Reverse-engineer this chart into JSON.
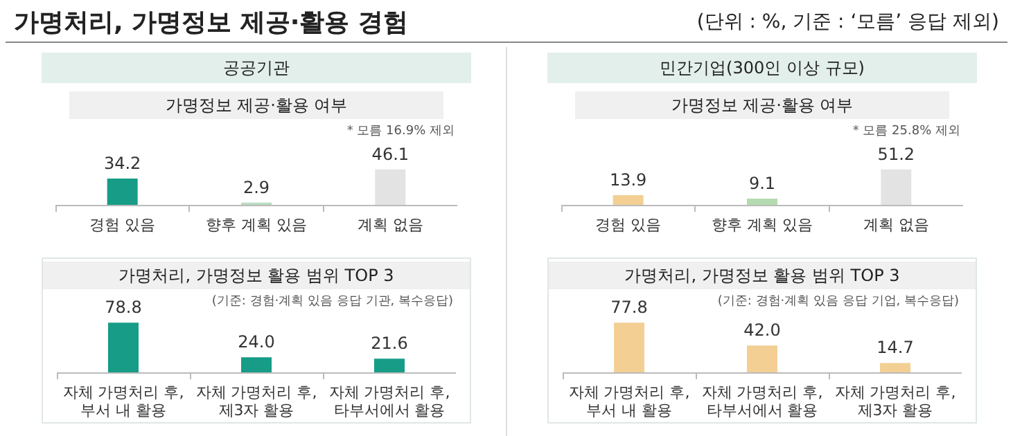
{
  "chart_data": [
    {
      "type": "bar",
      "subtitle": "공공기관",
      "title": "가명정보 제공·활용 여부",
      "annotations": [
        "가명처리, 가명정보 제공·활용 경험",
        "(단위 : %, 기준 : ‘모름’ 응답 제외)",
        "* 모름 16.9% 제외"
      ],
      "categories": [
        "경험 있음",
        "향후 계획 있음",
        "계획 없음"
      ],
      "values": [
        34.2,
        2.9,
        46.1
      ],
      "value_labels": [
        "34.2",
        "2.9",
        "46.1"
      ],
      "colors": [
        "#179c87",
        "#b9dcc0",
        "#e3e3e3"
      ],
      "grid": false
    },
    {
      "type": "bar",
      "subtitle": "민간기업(300인 이상 규모)",
      "title": "가명정보 제공·활용 여부",
      "annotations": [
        "* 모름 25.8% 제외"
      ],
      "categories": [
        "경험 있음",
        "향후 계획 있음",
        "계획 없음"
      ],
      "values": [
        13.9,
        9.1,
        51.2
      ],
      "value_labels": [
        "13.9",
        "9.1",
        "51.2"
      ],
      "colors": [
        "#f3cf94",
        "#b5dbb0",
        "#e3e3e3"
      ],
      "grid": false
    },
    {
      "type": "bar",
      "title": "가명처리, 가명정보 활용 범위 TOP 3",
      "annotations": [
        "(기준: 경험·계획 있음 응답 기관, 복수응답)"
      ],
      "categories": [
        "자체 가명처리 후,\n부서 내 활용",
        "자체 가명처리 후,\n제3자 활용",
        "자체 가명처리 후,\n타부서에서 활용"
      ],
      "values": [
        78.8,
        24.0,
        21.6
      ],
      "value_labels": [
        "78.8",
        "24.0",
        "21.6"
      ],
      "color": "#179c87",
      "grid": false
    },
    {
      "type": "bar",
      "title": "가명처리, 가명정보 활용 범위 TOP 3",
      "annotations": [
        "(기준: 경험·계획 있음 응답 기업, 복수응답)"
      ],
      "categories": [
        "자체 가명처리 후,\n부서 내 활용",
        "자체 가명처리 후,\n타부서에서 활용",
        "자체 가명처리 후,\n제3자 활용"
      ],
      "values": [
        77.8,
        42.0,
        14.7
      ],
      "value_labels": [
        "77.8",
        "42.0",
        "14.7"
      ],
      "color": "#f3cf94",
      "grid": false
    }
  ]
}
